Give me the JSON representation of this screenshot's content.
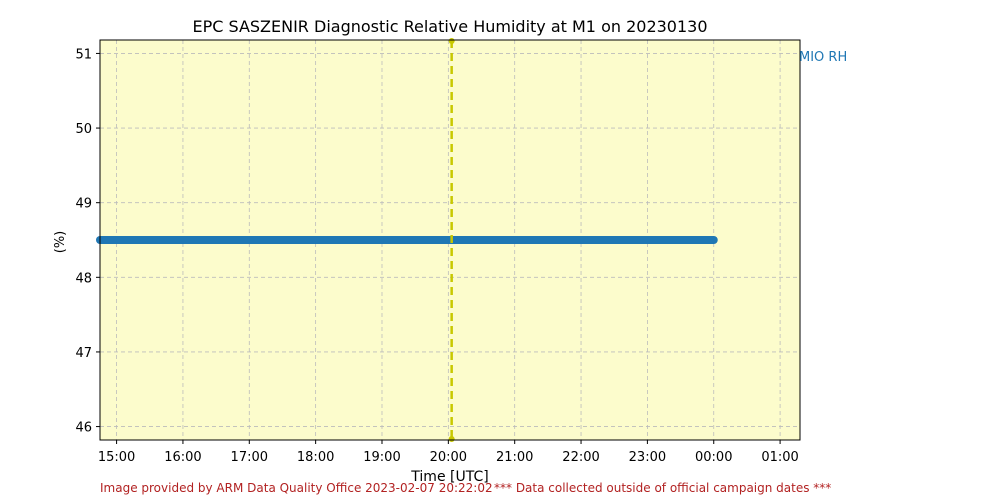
{
  "chart_data": {
    "type": "scatter",
    "title": "EPC SASZENIR Diagnostic Relative Humidity at M1 on 20230130",
    "xlabel": "Time [UTC]",
    "ylabel": "(%)",
    "x_tick_labels": [
      "15:00",
      "16:00",
      "17:00",
      "18:00",
      "19:00",
      "20:00",
      "21:00",
      "22:00",
      "23:00",
      "00:00",
      "01:00"
    ],
    "x_tick_hours": [
      15,
      16,
      17,
      18,
      19,
      20,
      21,
      22,
      23,
      24,
      25
    ],
    "xlim_hours": [
      14.75,
      25.3
    ],
    "ylim": [
      45.82,
      51.18
    ],
    "y_ticks": [
      46,
      47,
      48,
      49,
      50,
      51
    ],
    "grid": true,
    "background": "#fcfccc",
    "series": [
      {
        "name": "MIO RH",
        "color": "#1f77b4",
        "x_start_hour": 14.75,
        "x_end_hour": 24.0,
        "value": 48.5
      }
    ],
    "vertical_marker": {
      "x_hour": 20.05,
      "color": "#c8c800",
      "style": "dashed"
    },
    "legend_placement": "outside-top-right"
  },
  "footer": {
    "credit": "Image provided by ARM Data Quality Office 2023-02-07 20:22:02",
    "note": "*** Data collected outside of official campaign dates ***"
  }
}
